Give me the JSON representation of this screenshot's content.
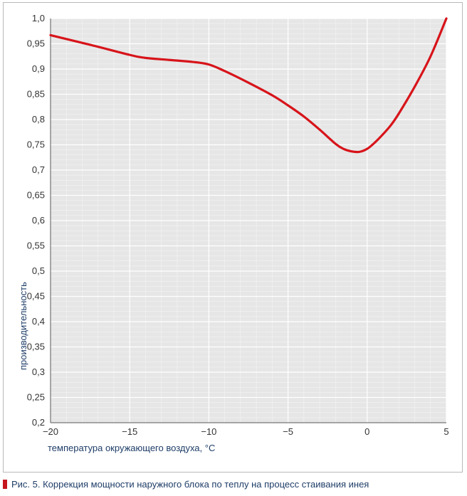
{
  "chart_data": {
    "type": "line",
    "title": "",
    "xlabel": "температура окружающего воздуха, °С",
    "ylabel": "производительность",
    "xlim": [
      -20,
      5
    ],
    "ylim": [
      0.2,
      1.0
    ],
    "x_ticks": [
      -20,
      -15,
      -10,
      -5,
      0,
      5
    ],
    "x_tick_labels": [
      "−20",
      "−15",
      "−10",
      "−5",
      "0",
      "5"
    ],
    "y_ticks": [
      0.2,
      0.25,
      0.3,
      0.35,
      0.4,
      0.45,
      0.5,
      0.55,
      0.6,
      0.65,
      0.7,
      0.75,
      0.8,
      0.85,
      0.9,
      0.95,
      1.0
    ],
    "y_tick_labels": [
      "0,2",
      "0,25",
      "0,3",
      "0,35",
      "0,4",
      "0,45",
      "0,5",
      "0,55",
      "0,6",
      "0,65",
      "0,7",
      "0,75",
      "0,8",
      "0,85",
      "0,9",
      "0,95",
      "1,0"
    ],
    "grid": true,
    "series": [
      {
        "color": "#d7141a",
        "x": [
          -20,
          -17.5,
          -15,
          -14,
          -12.5,
          -11,
          -10,
          -9,
          -7.5,
          -6,
          -5,
          -4,
          -3,
          -2,
          -1.5,
          -1,
          -0.5,
          0,
          0.5,
          1,
          1.5,
          2,
          3,
          4,
          5
        ],
        "y": [
          0.967,
          0.948,
          0.928,
          0.922,
          0.918,
          0.914,
          0.909,
          0.896,
          0.873,
          0.848,
          0.828,
          0.806,
          0.78,
          0.752,
          0.742,
          0.737,
          0.736,
          0.742,
          0.755,
          0.771,
          0.789,
          0.812,
          0.865,
          0.925,
          1.0
        ]
      }
    ]
  },
  "caption": {
    "text": "Рис. 5. Коррекция мощности наружного блока по теплу на процесс стаивания инея",
    "marker_color": "#c4161c"
  }
}
